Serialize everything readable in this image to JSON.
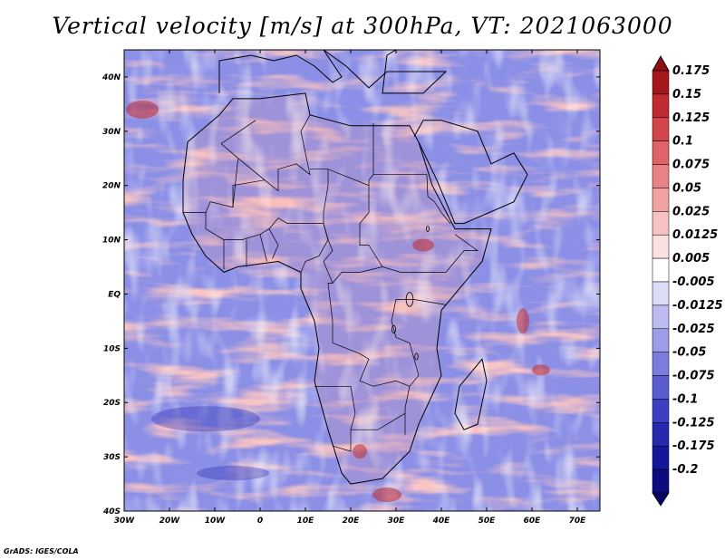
{
  "title": "Vertical velocity [m/s] at 300hPa, VT: 2021063000",
  "credit": "GrADS: IGES/COLA",
  "map": {
    "region": "Africa",
    "lon_range": [
      -30,
      75
    ],
    "lat_range": [
      -40,
      45
    ],
    "lat_labels": [
      {
        "lat": 40,
        "text": "40N"
      },
      {
        "lat": 30,
        "text": "30N"
      },
      {
        "lat": 20,
        "text": "20N"
      },
      {
        "lat": 10,
        "text": "10N"
      },
      {
        "lat": 0,
        "text": "EQ"
      },
      {
        "lat": -10,
        "text": "10S"
      },
      {
        "lat": -20,
        "text": "20S"
      },
      {
        "lat": -30,
        "text": "30S"
      },
      {
        "lat": -40,
        "text": "40S"
      }
    ],
    "lon_labels": [
      {
        "lon": -30,
        "text": "30W"
      },
      {
        "lon": -20,
        "text": "20W"
      },
      {
        "lon": -10,
        "text": "10W"
      },
      {
        "lon": 0,
        "text": "0"
      },
      {
        "lon": 10,
        "text": "10E"
      },
      {
        "lon": 20,
        "text": "20E"
      },
      {
        "lon": 30,
        "text": "30E"
      },
      {
        "lon": 40,
        "text": "40E"
      },
      {
        "lon": 50,
        "text": "50E"
      },
      {
        "lon": 60,
        "text": "60E"
      },
      {
        "lon": 70,
        "text": "70E"
      }
    ],
    "coastline": [
      [
        -17,
        21
      ],
      [
        -16,
        28
      ],
      [
        -9,
        33
      ],
      [
        -6,
        36
      ],
      [
        0,
        36
      ],
      [
        10,
        37
      ],
      [
        11,
        33
      ],
      [
        20,
        31
      ],
      [
        30,
        31
      ],
      [
        33,
        31
      ],
      [
        35,
        28
      ],
      [
        38,
        20
      ],
      [
        43,
        12
      ],
      [
        51,
        12
      ],
      [
        49,
        6
      ],
      [
        40,
        -3
      ],
      [
        39,
        -10
      ],
      [
        40,
        -15
      ],
      [
        35,
        -24
      ],
      [
        33,
        -29
      ],
      [
        27,
        -34
      ],
      [
        20,
        -35
      ],
      [
        18,
        -33
      ],
      [
        15,
        -25
      ],
      [
        12,
        -16
      ],
      [
        13,
        -10
      ],
      [
        12,
        -5
      ],
      [
        9,
        1
      ],
      [
        9,
        4
      ],
      [
        4,
        6
      ],
      [
        -5,
        5
      ],
      [
        -8,
        4
      ],
      [
        -12,
        7
      ],
      [
        -15,
        11
      ],
      [
        -17,
        15
      ]
    ],
    "madagascar": [
      [
        49,
        -12
      ],
      [
        50,
        -16
      ],
      [
        48,
        -24
      ],
      [
        45,
        -25
      ],
      [
        43,
        -22
      ],
      [
        44,
        -17
      ],
      [
        47,
        -14
      ]
    ],
    "features": [
      {
        "name": "arabia",
        "points": [
          [
            34,
            29
          ],
          [
            36,
            32
          ],
          [
            40,
            32
          ],
          [
            48,
            30
          ],
          [
            51,
            24
          ],
          [
            56,
            26
          ],
          [
            59,
            22
          ],
          [
            56,
            17
          ],
          [
            45,
            13
          ],
          [
            43,
            13
          ],
          [
            39,
            21
          ],
          [
            35,
            28
          ]
        ]
      },
      {
        "name": "europe",
        "points": [
          [
            -9,
            37
          ],
          [
            -9,
            43
          ],
          [
            -2,
            44
          ],
          [
            3,
            43
          ],
          [
            8,
            44
          ],
          [
            12,
            42
          ],
          [
            16,
            39
          ],
          [
            18,
            40
          ],
          [
            14,
            45
          ],
          [
            19,
            42
          ],
          [
            24,
            38
          ],
          [
            28,
            41
          ],
          [
            36,
            41
          ],
          [
            41,
            41
          ],
          [
            36,
            37
          ],
          [
            27,
            37
          ],
          [
            28,
            44
          ],
          [
            30,
            45
          ]
        ]
      }
    ],
    "borders": [
      [
        [
          -8.6,
          27.7
        ],
        [
          -1,
          32
        ]
      ],
      [
        [
          -8.6,
          27.7
        ],
        [
          -4.8,
          25
        ],
        [
          1,
          21
        ],
        [
          4,
          19
        ],
        [
          4,
          23
        ],
        [
          8,
          24
        ],
        [
          11,
          22
        ],
        [
          10,
          26
        ],
        [
          9,
          30
        ],
        [
          11,
          33
        ]
      ],
      [
        [
          11,
          23
        ],
        [
          15,
          23
        ],
        [
          24,
          20
        ],
        [
          24,
          21
        ],
        [
          25,
          22
        ],
        [
          25,
          31.5
        ]
      ],
      [
        [
          25,
          22
        ],
        [
          36.8,
          22
        ]
      ],
      [
        [
          24,
          20
        ],
        [
          24,
          15
        ],
        [
          22,
          13
        ],
        [
          22,
          9
        ],
        [
          24,
          9
        ],
        [
          27,
          5
        ],
        [
          31,
          4
        ],
        [
          34,
          4
        ],
        [
          36,
          4
        ],
        [
          41,
          4
        ],
        [
          42,
          5
        ],
        [
          45,
          8
        ],
        [
          48,
          8
        ],
        [
          43,
          11
        ]
      ],
      [
        [
          36.8,
          22
        ],
        [
          37,
          18
        ],
        [
          38.5,
          17
        ],
        [
          40,
          15
        ],
        [
          42,
          13
        ]
      ],
      [
        [
          15,
          23
        ],
        [
          15,
          20
        ],
        [
          14,
          15
        ],
        [
          14,
          13
        ],
        [
          15,
          10
        ],
        [
          16,
          8
        ],
        [
          14,
          6
        ],
        [
          16,
          2
        ],
        [
          15,
          2
        ],
        [
          16,
          -5
        ],
        [
          16,
          -9
        ],
        [
          22,
          -11
        ],
        [
          24,
          -12
        ],
        [
          22,
          -16
        ],
        [
          25,
          -17
        ],
        [
          30,
          -16
        ],
        [
          33,
          -17
        ],
        [
          32,
          -21
        ],
        [
          32,
          -26
        ]
      ],
      [
        [
          -17,
          15
        ],
        [
          -12,
          15
        ],
        [
          -12,
          12
        ],
        [
          -8,
          10
        ],
        [
          -4,
          10
        ],
        [
          0,
          11
        ],
        [
          2,
          12
        ],
        [
          4,
          14
        ],
        [
          6,
          13
        ],
        [
          9,
          13
        ],
        [
          13,
          13
        ],
        [
          14,
          13
        ]
      ],
      [
        [
          -12,
          15
        ],
        [
          -11,
          17
        ],
        [
          -6,
          16
        ],
        [
          -5,
          24
        ],
        [
          -4.8,
          25
        ]
      ],
      [
        [
          -6,
          16
        ],
        [
          -6,
          20
        ],
        [
          1,
          21
        ]
      ],
      [
        [
          2,
          12
        ],
        [
          4,
          9
        ],
        [
          2.7,
          6.5
        ]
      ],
      [
        [
          0,
          11
        ],
        [
          1.5,
          6
        ]
      ],
      [
        [
          -3,
          10
        ],
        [
          -3,
          5
        ]
      ],
      [
        [
          -8,
          10
        ],
        [
          -8,
          4.5
        ]
      ],
      [
        [
          14,
          13
        ],
        [
          15,
          10
        ],
        [
          13,
          7
        ],
        [
          10,
          6
        ],
        [
          9,
          4
        ]
      ],
      [
        [
          16,
          2
        ],
        [
          18,
          4
        ],
        [
          22,
          4
        ],
        [
          27,
          5
        ]
      ],
      [
        [
          30,
          -1
        ],
        [
          34,
          -1
        ],
        [
          41,
          -2
        ]
      ],
      [
        [
          30,
          -1
        ],
        [
          29,
          -5
        ],
        [
          30,
          -8
        ],
        [
          33,
          -9
        ],
        [
          34,
          -12
        ],
        [
          35,
          -15
        ],
        [
          33,
          -17
        ]
      ],
      [
        [
          12,
          -17
        ],
        [
          20,
          -17
        ],
        [
          21,
          -22
        ],
        [
          20,
          -25
        ],
        [
          20,
          -29
        ],
        [
          16,
          -28
        ]
      ],
      [
        [
          20,
          -25
        ],
        [
          26,
          -25
        ],
        [
          32,
          -22
        ]
      ]
    ],
    "lakes": [
      {
        "lon": 33,
        "lat": -1,
        "r": 1.3
      },
      {
        "lon": 29.5,
        "lat": -6.5,
        "r": 0.7
      },
      {
        "lon": 34.5,
        "lat": -11.5,
        "r": 0.6
      },
      {
        "lon": 37,
        "lat": 12,
        "r": 0.5
      }
    ]
  },
  "colorbar": {
    "labels": [
      "0.175",
      "0.15",
      "0.125",
      "0.1",
      "0.075",
      "0.05",
      "0.025",
      "0.0125",
      "0.005",
      "-0.005",
      "-0.0125",
      "-0.025",
      "-0.05",
      "-0.075",
      "-0.1",
      "-0.125",
      "-0.175",
      "-0.2"
    ],
    "colors": [
      "#a5161d",
      "#c12a30",
      "#d2464b",
      "#df6367",
      "#e88285",
      "#f0a2a3",
      "#f6c2c2",
      "#fbe0e0",
      "#ffffff",
      "#dcdcf9",
      "#bcbcf1",
      "#9c9ce8",
      "#7c7cde",
      "#5c5cd2",
      "#3e3ec4",
      "#2727b0",
      "#16169a",
      "#0c0c80"
    ]
  }
}
